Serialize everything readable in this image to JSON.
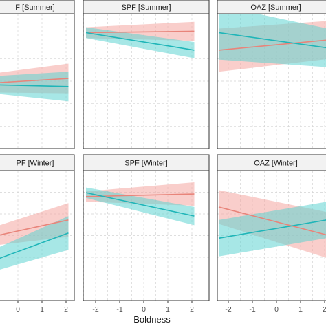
{
  "chart_data": {
    "type": "line",
    "xlabel": "Boldness",
    "ylabel": "",
    "grid": true,
    "xlim": [
      -2.6,
      2.4
    ],
    "ylim": [
      0,
      1
    ],
    "x_ticks": [
      -2,
      -1,
      0,
      1,
      2
    ],
    "x_tick_labels": [
      "-2",
      "-1",
      "0",
      "1",
      "2"
    ],
    "colors": {
      "red": "#E8847A",
      "teal": "#1FB5B8",
      "red_band": "#F4A6A0",
      "teal_band": "#5FD3D2",
      "overlap_line": "#A08A80"
    },
    "panels": [
      {
        "strip": "F [Summer]",
        "x_range": [
          -2.6,
          2.1
        ],
        "series": [
          {
            "color": "red",
            "x": [
              -2.6,
              2.1
            ],
            "y": [
              0.47,
              0.52
            ],
            "band_half": [
              0.05,
              0.11
            ]
          },
          {
            "color": "teal",
            "x": [
              -2.6,
              2.1
            ],
            "y": [
              0.48,
              0.46
            ],
            "band_half": [
              0.04,
              0.11
            ]
          }
        ]
      },
      {
        "strip": "SPF [Summer]",
        "x_range": [
          -2.4,
          2.1
        ],
        "series": [
          {
            "color": "red",
            "x": [
              -2.4,
              2.1
            ],
            "y": [
              0.86,
              0.87
            ],
            "band_half": [
              0.04,
              0.07
            ]
          },
          {
            "color": "teal",
            "x": [
              -2.4,
              2.1
            ],
            "y": [
              0.86,
              0.73
            ],
            "band_half": [
              0.04,
              0.06
            ]
          }
        ]
      },
      {
        "strip": "OAZ [Summer]",
        "x_range": [
          -2.4,
          2.4
        ],
        "series": [
          {
            "color": "red",
            "x": [
              -2.4,
              2.4
            ],
            "y": [
              0.73,
              0.81
            ],
            "band_half": [
              0.16,
              0.14
            ]
          },
          {
            "color": "teal",
            "x": [
              -2.4,
              2.4
            ],
            "y": [
              0.86,
              0.74
            ],
            "band_half": [
              0.2,
              0.14
            ]
          }
        ]
      },
      {
        "strip": "PF [Winter]",
        "x_range": [
          -2.6,
          2.1
        ],
        "series": [
          {
            "color": "red",
            "x": [
              -2.6,
              2.1
            ],
            "y": [
              0.43,
              0.62
            ],
            "band_half": [
              0.04,
              0.13
            ]
          },
          {
            "color": "teal",
            "x": [
              -2.6,
              2.1
            ],
            "y": [
              0.2,
              0.52
            ],
            "band_half": [
              0.06,
              0.13
            ]
          }
        ]
      },
      {
        "strip": "SPF [Winter]",
        "x_range": [
          -2.4,
          2.1
        ],
        "series": [
          {
            "color": "red",
            "x": [
              -2.4,
              2.1
            ],
            "y": [
              0.8,
              0.82
            ],
            "band_half": [
              0.04,
              0.09
            ]
          },
          {
            "color": "teal",
            "x": [
              -2.4,
              2.1
            ],
            "y": [
              0.83,
              0.65
            ],
            "band_half": [
              0.04,
              0.07
            ]
          }
        ]
      },
      {
        "strip": "OAZ [Winter]",
        "x_range": [
          -2.4,
          2.4
        ],
        "series": [
          {
            "color": "red",
            "x": [
              -2.4,
              2.4
            ],
            "y": [
              0.72,
              0.49
            ],
            "band_half": [
              0.13,
              0.18
            ]
          },
          {
            "color": "teal",
            "x": [
              -2.4,
              2.4
            ],
            "y": [
              0.48,
              0.63
            ],
            "band_half": [
              0.14,
              0.14
            ]
          }
        ]
      }
    ]
  }
}
